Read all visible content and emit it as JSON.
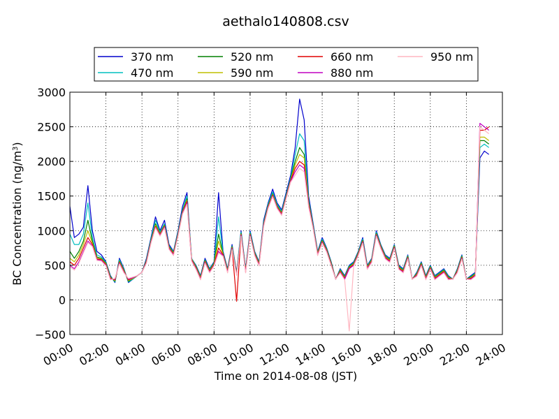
{
  "chart_data": {
    "type": "line",
    "title": "aethalo140808.csv",
    "xlabel": "Time on 2014-08-08 (JST)",
    "ylabel_main": "BC Concentration (ng/m",
    "ylabel_sup": "3",
    "ylabel_close": ")",
    "xlim": [
      0,
      24
    ],
    "ylim": [
      -500,
      3000
    ],
    "grid": true,
    "legend_position": "top-center",
    "x_ticks": [
      0,
      2,
      4,
      6,
      8,
      10,
      12,
      14,
      16,
      18,
      20,
      22,
      24
    ],
    "x_tick_labels": [
      "00:00",
      "02:00",
      "04:00",
      "06:00",
      "08:00",
      "10:00",
      "12:00",
      "14:00",
      "16:00",
      "18:00",
      "20:00",
      "22:00",
      "24:00"
    ],
    "y_ticks": [
      -500,
      0,
      500,
      1000,
      1500,
      2000,
      2500,
      3000
    ],
    "y_tick_labels": [
      "−500",
      "0",
      "500",
      "1000",
      "1500",
      "2000",
      "2500",
      "3000"
    ],
    "x_hours": [
      0,
      0.25,
      0.5,
      0.75,
      1,
      1.25,
      1.5,
      1.75,
      2,
      2.25,
      2.5,
      2.75,
      3,
      3.25,
      3.5,
      3.75,
      4,
      4.25,
      4.5,
      4.75,
      5,
      5.25,
      5.5,
      5.75,
      6,
      6.25,
      6.5,
      6.75,
      7,
      7.25,
      7.5,
      7.75,
      8,
      8.25,
      8.5,
      8.75,
      9,
      9.25,
      9.5,
      9.75,
      10,
      10.25,
      10.5,
      10.75,
      11,
      11.25,
      11.5,
      11.75,
      12,
      12.25,
      12.5,
      12.75,
      13,
      13.25,
      13.5,
      13.75,
      14,
      14.25,
      14.5,
      14.75,
      15,
      15.25,
      15.5,
      15.75,
      16,
      16.25,
      16.5,
      16.75,
      17,
      17.25,
      17.5,
      17.75,
      18,
      18.25,
      18.5,
      18.75,
      19,
      19.25,
      19.5,
      19.75,
      20,
      20.25,
      20.5,
      20.75,
      21,
      21.25,
      21.5,
      21.75,
      22,
      22.25,
      22.5,
      22.75,
      23,
      23.25,
      23.5,
      23.75
    ],
    "series": [
      {
        "name": "370 nm",
        "color": "#0000cc",
        "values": [
          1350,
          900,
          950,
          1050,
          1650,
          1000,
          700,
          650,
          550,
          350,
          250,
          600,
          450,
          250,
          300,
          350,
          400,
          600,
          900,
          1200,
          1000,
          1150,
          800,
          700,
          1000,
          1350,
          1550,
          600,
          500,
          350,
          600,
          450,
          550,
          1550,
          700,
          450,
          800,
          400,
          1000,
          450,
          1000,
          700,
          550,
          1150,
          1400,
          1600,
          1400,
          1300,
          1550,
          1800,
          2200,
          2900,
          2600,
          1500,
          1100,
          700,
          900,
          750,
          550,
          300,
          450,
          350,
          500,
          550,
          700,
          900,
          500,
          600,
          1000,
          800,
          650,
          600,
          800,
          500,
          450,
          650,
          300,
          400,
          550,
          350,
          500,
          350,
          400,
          450,
          350,
          300,
          450,
          650,
          300,
          350,
          400,
          2050,
          2150,
          2100
        ]
      },
      {
        "name": "470 nm",
        "color": "#00bfbf",
        "values": [
          950,
          800,
          800,
          950,
          1400,
          900,
          650,
          620,
          540,
          340,
          260,
          580,
          440,
          260,
          300,
          350,
          400,
          580,
          880,
          1150,
          980,
          1100,
          780,
          690,
          980,
          1300,
          1500,
          600,
          490,
          340,
          580,
          440,
          540,
          1200,
          680,
          440,
          780,
          390,
          980,
          440,
          980,
          690,
          540,
          1120,
          1380,
          1560,
          1380,
          1280,
          1520,
          1760,
          2100,
          2400,
          2300,
          1450,
          1080,
          690,
          880,
          740,
          540,
          300,
          440,
          340,
          490,
          540,
          690,
          880,
          490,
          590,
          980,
          790,
          640,
          590,
          790,
          490,
          440,
          640,
          300,
          390,
          540,
          340,
          490,
          340,
          390,
          440,
          340,
          300,
          440,
          640,
          300,
          340,
          390,
          2200,
          2250,
          2200
        ]
      },
      {
        "name": "520 nm",
        "color": "#008000",
        "values": [
          700,
          600,
          700,
          850,
          1150,
          850,
          620,
          600,
          530,
          330,
          270,
          560,
          430,
          270,
          310,
          350,
          400,
          570,
          860,
          1100,
          960,
          1080,
          770,
          680,
          960,
          1280,
          1460,
          590,
          480,
          330,
          570,
          430,
          530,
          950,
          670,
          430,
          770,
          380,
          960,
          430,
          960,
          680,
          530,
          1100,
          1360,
          1530,
          1360,
          1260,
          1500,
          1740,
          2000,
          2200,
          2100,
          1420,
          1060,
          680,
          860,
          730,
          530,
          300,
          430,
          330,
          480,
          530,
          680,
          860,
          480,
          580,
          960,
          780,
          630,
          580,
          780,
          480,
          430,
          630,
          300,
          380,
          530,
          330,
          480,
          330,
          380,
          430,
          330,
          300,
          430,
          630,
          300,
          330,
          380,
          2300,
          2300,
          2250
        ]
      },
      {
        "name": "590 nm",
        "color": "#bfbf00",
        "values": [
          600,
          550,
          650,
          800,
          1000,
          820,
          600,
          590,
          520,
          320,
          280,
          550,
          420,
          280,
          310,
          350,
          400,
          560,
          850,
          1080,
          950,
          1070,
          760,
          670,
          950,
          1270,
          1440,
          590,
          470,
          320,
          560,
          420,
          520,
          850,
          660,
          420,
          760,
          370,
          950,
          420,
          950,
          670,
          520,
          1090,
          1350,
          1520,
          1350,
          1250,
          1490,
          1730,
          1950,
          2100,
          2050,
          1400,
          1050,
          670,
          850,
          720,
          520,
          300,
          420,
          320,
          470,
          520,
          670,
          850,
          470,
          570,
          950,
          770,
          620,
          570,
          770,
          470,
          420,
          620,
          300,
          370,
          520,
          320,
          470,
          320,
          370,
          420,
          320,
          300,
          420,
          620,
          300,
          320,
          370,
          2350,
          2350,
          2300
        ]
      },
      {
        "name": "660 nm",
        "color": "#e00000",
        "values": [
          550,
          500,
          600,
          750,
          900,
          800,
          590,
          580,
          510,
          310,
          290,
          540,
          410,
          290,
          320,
          350,
          400,
          550,
          840,
          1060,
          940,
          1060,
          750,
          660,
          940,
          1260,
          1420,
          580,
          460,
          310,
          550,
          410,
          510,
          750,
          650,
          410,
          750,
          -20,
          940,
          410,
          940,
          660,
          510,
          1080,
          1340,
          1510,
          1340,
          1240,
          1480,
          1720,
          1900,
          2000,
          1950,
          1380,
          1040,
          660,
          840,
          710,
          510,
          300,
          410,
          310,
          460,
          510,
          660,
          840,
          460,
          560,
          940,
          760,
          610,
          560,
          760,
          460,
          410,
          610,
          300,
          360,
          510,
          310,
          460,
          310,
          360,
          410,
          310,
          300,
          410,
          610,
          300,
          310,
          360,
          2450,
          2450,
          2500
        ]
      },
      {
        "name": "880 nm",
        "color": "#c000c0",
        "values": [
          500,
          450,
          550,
          700,
          850,
          780,
          580,
          570,
          500,
          300,
          300,
          530,
          400,
          300,
          320,
          350,
          400,
          540,
          830,
          1050,
          930,
          1050,
          740,
          650,
          930,
          1250,
          1400,
          570,
          450,
          300,
          540,
          400,
          500,
          700,
          640,
          400,
          740,
          360,
          930,
          400,
          930,
          650,
          500,
          1070,
          1330,
          1500,
          1330,
          1230,
          1470,
          1710,
          1850,
          1950,
          1900,
          1360,
          1030,
          650,
          830,
          700,
          500,
          300,
          400,
          300,
          450,
          500,
          650,
          830,
          450,
          550,
          930,
          750,
          600,
          550,
          750,
          450,
          400,
          600,
          300,
          350,
          500,
          300,
          450,
          300,
          350,
          400,
          300,
          300,
          400,
          600,
          300,
          300,
          350,
          2550,
          2500,
          2450
        ]
      },
      {
        "name": "950 nm",
        "color": "#ffb6c1",
        "values": [
          480,
          430,
          530,
          680,
          830,
          770,
          570,
          560,
          490,
          290,
          310,
          520,
          390,
          310,
          330,
          350,
          400,
          530,
          820,
          1040,
          920,
          1040,
          730,
          640,
          920,
          1240,
          1380,
          560,
          440,
          290,
          530,
          390,
          490,
          680,
          630,
          390,
          730,
          350,
          920,
          390,
          920,
          640,
          490,
          1060,
          1320,
          1490,
          1320,
          1220,
          1460,
          1700,
          1800,
          1900,
          1850,
          1340,
          1020,
          640,
          820,
          690,
          490,
          300,
          390,
          290,
          -450,
          490,
          640,
          820,
          440,
          540,
          920,
          740,
          590,
          540,
          740,
          440,
          390,
          590,
          300,
          340,
          490,
          290,
          440,
          290,
          340,
          390,
          290,
          300,
          390,
          590,
          300,
          290,
          340,
          2500,
          2450,
          2400
        ]
      }
    ]
  }
}
